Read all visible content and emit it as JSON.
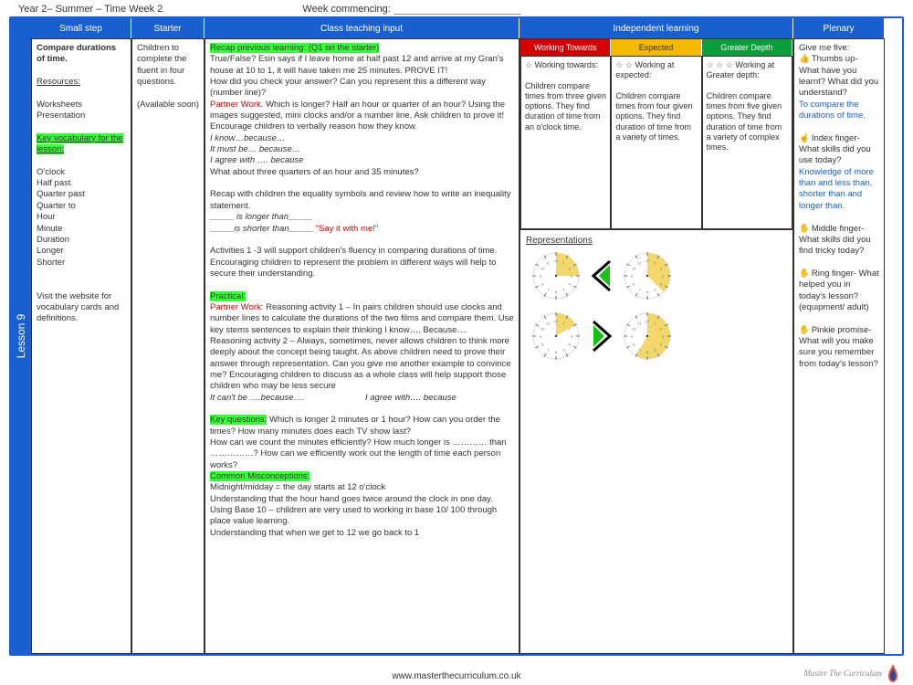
{
  "header": {
    "left": "Year 2– Summer – Time Week 2",
    "wc_label": "Week commencing:"
  },
  "tab": {
    "label": "Lesson 9"
  },
  "columns": {
    "small_step": "Small step",
    "starter": "Starter",
    "teaching": "Class teaching input",
    "independent": "Independent learning",
    "plenary": "Plenary"
  },
  "small_step": {
    "title": "Compare durations of time.",
    "resources_label": "Resources:",
    "resources": "Worksheets\nPresentation",
    "vocab_label": "Key vocabulary for the lesson:",
    "vocab": "O'clock\nHalf past\nQuarter past\nQuarter to\nHour\nMinute\nDuration\nLonger\nShorter",
    "visit": "Visit the website for vocabulary cards and definitions."
  },
  "starter": {
    "text": "Children to complete the fluent in four questions.",
    "note": "(Available soon)"
  },
  "teaching": {
    "recap_hl": "Recap previous learning: (Q1 on the starter)",
    "l1": "True/False?  Esin says if I leave home at half past 12 and arrive at my Gran's house at 10 to 1, it will have taken me 25 minutes. PROVE IT!",
    "l2": "How did you check your answer?  Can you represent this a different way (number line)?",
    "pw1_label": "Partner Work.",
    "pw1": " Which is longer?  Half an hour or quarter of an hour? Using the images suggested,  mini clocks and/or a number line, Ask children to prove it!  Encourage children to verbally reason how they know.",
    "stems1": "I know…because…",
    "stems2": "It must be… because…",
    "stems3": "I agree with …. because",
    "l3": "What about three quarters of an hour and 35 minutes?",
    "l4": "Recap with children the equality symbols and review how to write an inequality statement.",
    "blank1": "_____ is longer than_____",
    "blank2_a": "_____is shorter than_____   ",
    "blank2_b": "\"Say it with me!\"",
    "l5": "Activities 1 -3 will support children's fluency in comparing durations of time.  Encouraging children to represent the problem in different ways will help to secure their understanding.",
    "practical_hl": "Practical:",
    "pw2_label": "Partner Work:",
    "pw2": " Reasoning activity 1 – In pairs children should use clocks and number lines to calculate the durations of the two films and compare them.  Use key stems sentences to explain their thinking I know…. Because….",
    "l6": "Reasoning activity 2 – Always, sometimes, never allows children to think more deeply about the concept being taught. As above children need to prove their answer through representation.   Can you give me another example to convince me? Encouraging children to discuss as a whole class will help support those children who may be less secure",
    "stems4a": " It can't be ….because….",
    "stems4b": "I agree with…. because",
    "kq_hl": "Key questions:",
    "kq": " Which is longer 2 minutes or 1 hour? How can you order the times? How many minutes does each TV show last?\nHow can we count the minutes efficiently? How much longer is ………… than ……………? How can we efficiently work out the length of time each person works?",
    "cm_hl": "Common Misconceptions:",
    "cm": "Midnight/midday = the day starts at 12 o'clock\nUnderstanding that the hour hand goes twice around the clock in one day.\nUsing Base 10 – children are very used to working in base 10/ 100 through place value learning.\nUnderstanding that when we get to 12 we go back to 1"
  },
  "independent": {
    "sub_headers": {
      "wt": "Working Towards",
      "ex": "Expected",
      "gd": "Greater Depth"
    },
    "wt": {
      "stars": "☆",
      "label": " Working towards:",
      "body": "Children compare times from three given options. They find duration of time from an o'clock time."
    },
    "ex": {
      "stars": "☆ ☆",
      "label": " Working at expected:",
      "body": "Children compare times from four given options. They find duration of time from a variety of times."
    },
    "gd": {
      "stars": "☆ ☆ ☆",
      "label": " Working at Greater depth:",
      "body": "Children compare times from five given options. They find duration of time from a variety of complex times."
    },
    "rep_title": "Representations",
    "clock_style": {
      "face_fill": "#ffffff",
      "sector_fill": "#f4d76a",
      "tick_color": "#6b6b6b",
      "cmp_stroke": "#000000",
      "cmp_fill": "#18c018"
    },
    "row1": {
      "clock_a_sweep": 90,
      "clock_b_sweep": 135,
      "cmp": "lt"
    },
    "row2": {
      "clock_a_sweep": 60,
      "clock_b_sweep": 210,
      "cmp": "gt"
    }
  },
  "plenary": {
    "title": "Give me five:",
    "thumbs": "Thumbs up- What have you learnt? What did you understand?",
    "thumbs_ans": "To compare the durations of time.",
    "index": "Index finger- What skills did you use today?",
    "index_ans": "Knowledge of more than and less than, shorter than and longer than.",
    "middle": "Middle finger- What skills did you find tricky today?",
    "ring": "Ring finger- What helped you in today's lesson? (equipment/ adult)",
    "pinkie": "Pinkie promise- What will you make sure you remember from today's lesson?"
  },
  "footer": {
    "url": "www.masterthecurriculum.co.uk",
    "brand": "Master The Curriculum"
  }
}
